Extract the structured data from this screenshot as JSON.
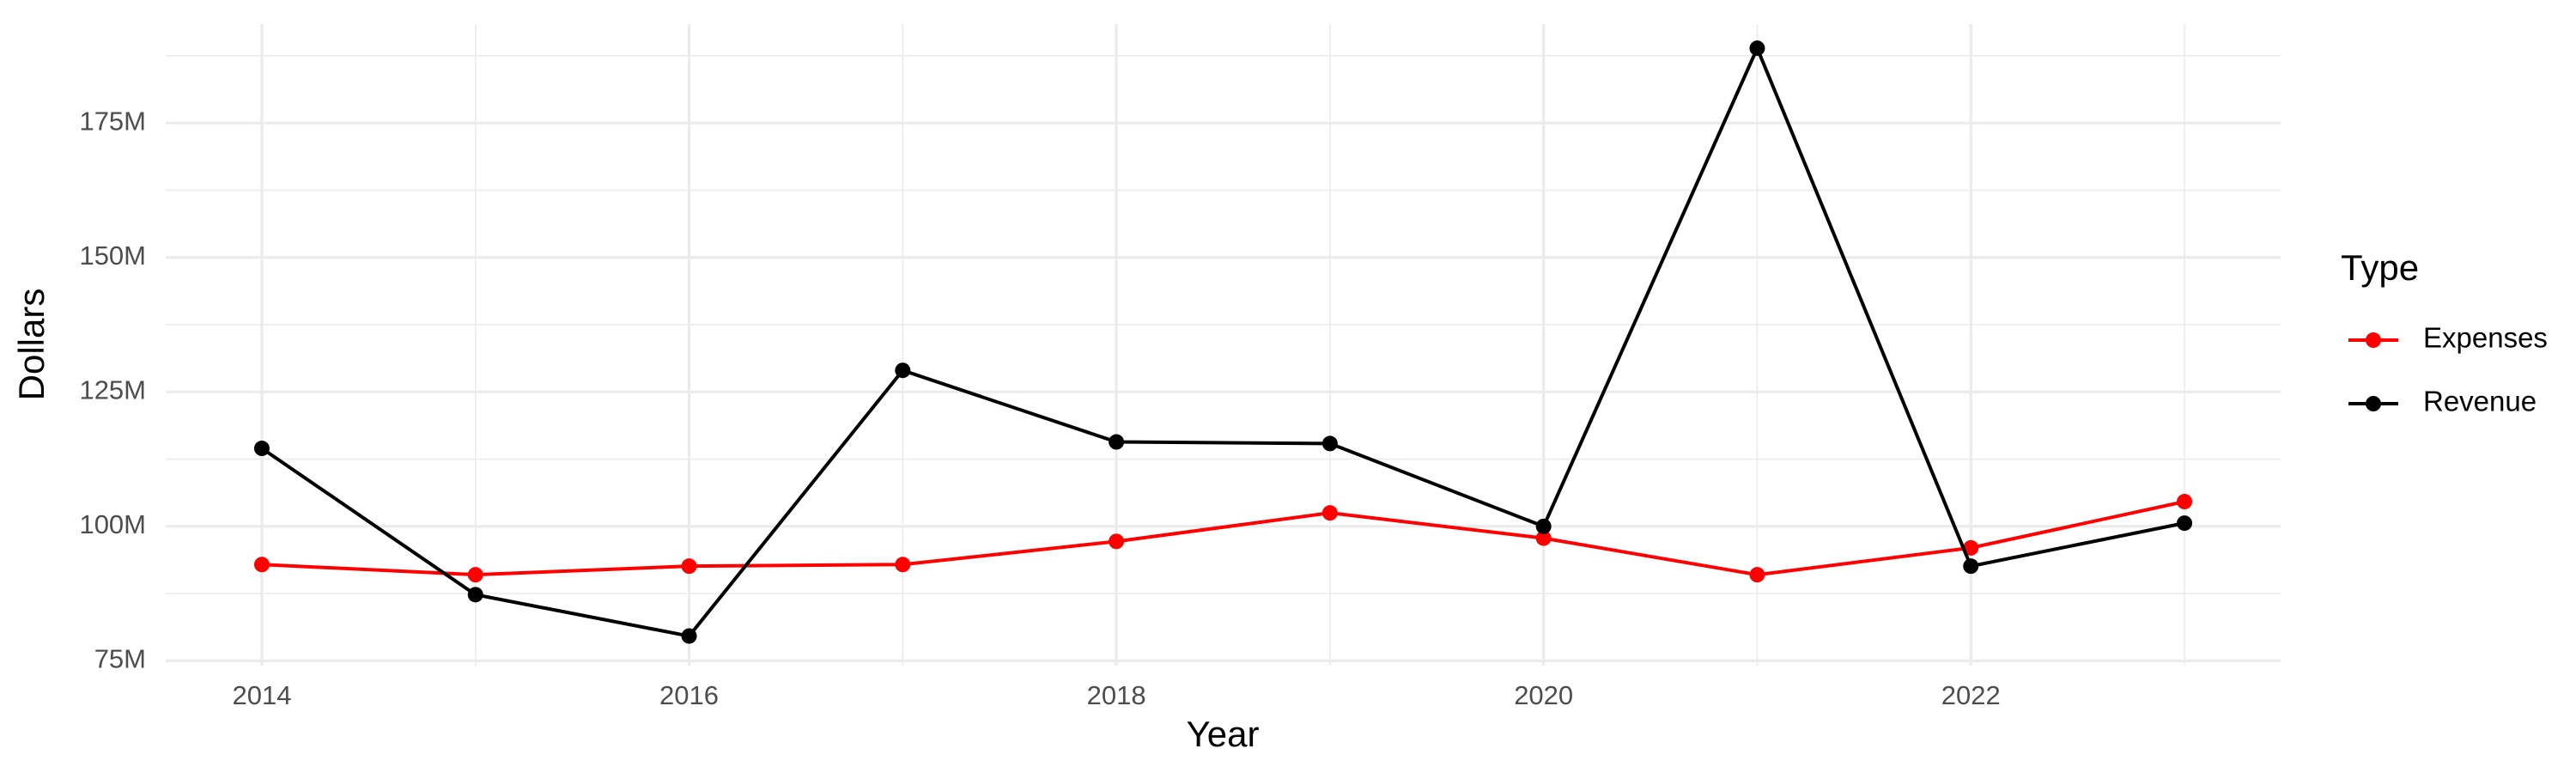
{
  "chart_data": {
    "type": "line",
    "x_label": "Year",
    "y_label": "Dollars",
    "legend_title": "Type",
    "legend": "right",
    "grid": true,
    "x": [
      2014,
      2015,
      2016,
      2017,
      2018,
      2019,
      2020,
      2021,
      2022,
      2023
    ],
    "series": [
      {
        "name": "Expenses",
        "color": "#ff0000",
        "values": [
          92900000,
          91000000,
          92600000,
          92900000,
          97200000,
          102500000,
          97800000,
          91000000,
          96000000,
          104600000
        ]
      },
      {
        "name": "Revenue",
        "color": "#000000",
        "values": [
          114500000,
          87300000,
          79600000,
          129000000,
          115700000,
          115400000,
          100000000,
          188900000,
          92600000,
          100600000
        ]
      }
    ],
    "xlim": [
      2013.55,
      2023.45
    ],
    "xticks": [
      2014,
      2016,
      2018,
      2020,
      2022
    ],
    "ylim": [
      74100000,
      193400000
    ],
    "yticks": [
      {
        "value": 75000000,
        "label": "75M"
      },
      {
        "value": 100000000,
        "label": "100M"
      },
      {
        "value": 125000000,
        "label": "125M"
      },
      {
        "value": 150000000,
        "label": "150M"
      },
      {
        "value": 175000000,
        "label": "175M"
      }
    ]
  }
}
